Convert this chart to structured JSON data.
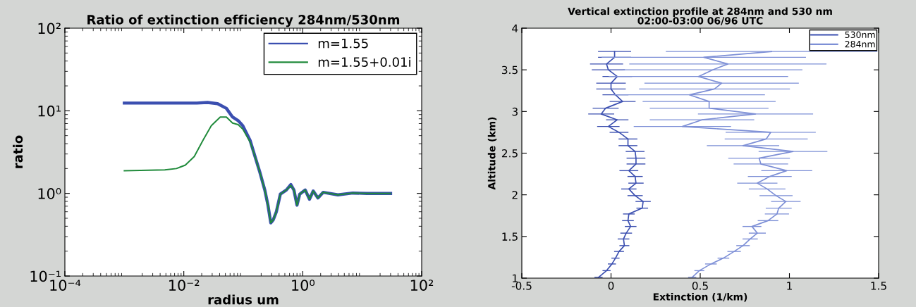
{
  "chart_data": [
    {
      "type": "line",
      "title": "Ratio of extinction efficiency 284nm/530nm",
      "xlabel": "radius um",
      "ylabel": "ratio",
      "log": "xy",
      "xlim": [
        0.0001,
        100
      ],
      "ylim": [
        0.1,
        100
      ],
      "xticks": [
        {
          "value": 0.0001,
          "label": "10⁻⁴"
        },
        {
          "value": 0.01,
          "label": "10⁻²"
        },
        {
          "value": 1,
          "label": "10⁰"
        },
        {
          "value": 100,
          "label": "10²"
        }
      ],
      "yticks": [
        {
          "value": 0.1,
          "label": "10⁻¹"
        },
        {
          "value": 1,
          "label": "10⁰"
        },
        {
          "value": 10,
          "label": "10¹"
        },
        {
          "value": 100,
          "label": "10²"
        }
      ],
      "grid": false,
      "legend": "top right",
      "marker": "none",
      "line_style": "solid",
      "series": [
        {
          "name": "m=1.55",
          "color": "#3b4fb0",
          "x": [
            0.001,
            0.0166,
            0.025,
            0.037,
            0.052,
            0.066,
            0.082,
            0.098,
            0.13,
            0.16,
            0.19,
            0.23,
            0.26,
            0.29,
            0.32,
            0.36,
            0.42,
            0.53,
            0.63,
            0.71,
            0.8,
            0.89,
            1.1,
            1.3,
            1.5,
            1.8,
            2.2,
            3.9,
            6.9,
            12,
            30
          ],
          "values": [
            12.4,
            12.4,
            12.6,
            12.2,
            10.7,
            8.4,
            7.6,
            6.6,
            4.4,
            2.7,
            1.8,
            1.1,
            0.72,
            0.44,
            0.48,
            0.6,
            0.98,
            1.1,
            1.28,
            1.1,
            0.72,
            0.98,
            1.1,
            0.85,
            1.07,
            0.88,
            1.03,
            0.96,
            1.01,
            1.0,
            1.0
          ]
        },
        {
          "name": "m=1.55+0.01i",
          "color": "#1f8a3a",
          "x": [
            0.001,
            0.0048,
            0.0075,
            0.0106,
            0.015,
            0.021,
            0.029,
            0.041,
            0.052,
            0.066,
            0.082,
            0.098,
            0.13,
            0.16,
            0.19,
            0.23,
            0.26,
            0.29,
            0.32,
            0.36,
            0.42,
            0.53,
            0.63,
            0.71,
            0.8,
            0.89,
            1.1,
            1.3,
            1.5,
            1.8,
            2.2,
            3.9,
            6.9,
            12,
            30
          ],
          "values": [
            1.88,
            1.93,
            2.0,
            2.2,
            2.8,
            4.4,
            6.6,
            8.4,
            8.4,
            7.1,
            6.8,
            6.0,
            4.2,
            2.7,
            1.8,
            1.1,
            0.72,
            0.44,
            0.48,
            0.6,
            0.98,
            1.1,
            1.25,
            1.1,
            0.72,
            0.98,
            1.1,
            0.85,
            1.07,
            0.88,
            1.03,
            0.96,
            1.01,
            1.0,
            1.0
          ]
        }
      ]
    },
    {
      "type": "line",
      "title": "Vertical extinction profile at 284nm and 530 nm",
      "subtitle": "02:00-03:00 06/96 UTC",
      "xlabel": "Extinction (1/km)",
      "ylabel": "Altitude (km)",
      "xlim": [
        -0.5,
        1.5
      ],
      "ylim": [
        1,
        4
      ],
      "xticks": [
        -0.5,
        0,
        0.5,
        1,
        1.5
      ],
      "yticks": [
        1,
        1.5,
        2,
        2.5,
        3,
        3.5,
        4
      ],
      "grid": false,
      "legend": "top right",
      "marker": "none",
      "line_style": "solid",
      "series": [
        {
          "name": "530nm",
          "color": "#3b4fb0",
          "x": [
            -0.07,
            -0.025,
            0.005,
            0.025,
            0.045,
            0.075,
            0.07,
            0.085,
            0.11,
            0.095,
            0.1,
            0.175,
            0.18,
            0.135,
            0.1,
            0.14,
            0.135,
            0.1,
            0.14,
            0.14,
            0.135,
            0.095,
            0.095,
            0.045,
            -0.015,
            0.035,
            -0.055,
            -0.03,
            0.065,
            0.025,
            0.0,
            0.0,
            0.035,
            -0.015,
            -0.025,
            0.02,
            0.02
          ],
          "values": [
            1.01,
            1.09,
            1.17,
            1.24,
            1.32,
            1.39,
            1.47,
            1.54,
            1.62,
            1.69,
            1.77,
            1.84,
            1.92,
            1.99,
            2.07,
            2.14,
            2.22,
            2.29,
            2.37,
            2.44,
            2.52,
            2.59,
            2.67,
            2.75,
            2.82,
            2.9,
            2.97,
            3.04,
            3.12,
            3.2,
            3.27,
            3.34,
            3.42,
            3.5,
            3.57,
            3.65,
            3.72
          ],
          "xerrors": [
            0.02,
            0.02,
            0.02,
            0.02,
            0.025,
            0.025,
            0.03,
            0.03,
            0.03,
            0.03,
            0.03,
            0.03,
            0.04,
            0.04,
            0.04,
            0.04,
            0.04,
            0.05,
            0.05,
            0.05,
            0.05,
            0.05,
            0.05,
            0.05,
            0.06,
            0.06,
            0.07,
            0.07,
            0.07,
            0.07,
            0.08,
            0.08,
            0.08,
            0.09,
            0.09,
            0.09,
            0.09
          ]
        },
        {
          "name": "284nm",
          "color": "#7d8fd6",
          "x": [
            0.455,
            0.495,
            0.56,
            0.63,
            0.69,
            0.74,
            0.78,
            0.82,
            0.79,
            0.88,
            0.93,
            0.94,
            0.98,
            0.925,
            0.875,
            0.82,
            0.89,
            0.985,
            0.84,
            0.83,
            1.02,
            0.74,
            0.87,
            0.895,
            0.4,
            0.51,
            0.81,
            0.55,
            0.55,
            0.44,
            0.58,
            0.62,
            0.49,
            0.57,
            0.655,
            0.52,
            0.9
          ],
          "values": [
            1.01,
            1.09,
            1.17,
            1.24,
            1.32,
            1.39,
            1.47,
            1.54,
            1.62,
            1.69,
            1.77,
            1.84,
            1.92,
            1.99,
            2.07,
            2.14,
            2.22,
            2.29,
            2.37,
            2.44,
            2.52,
            2.59,
            2.67,
            2.75,
            2.82,
            2.9,
            2.97,
            3.04,
            3.12,
            3.2,
            3.27,
            3.34,
            3.42,
            3.5,
            3.57,
            3.65,
            3.72
          ],
          "xerrors": [
            0.02,
            0.025,
            0.03,
            0.03,
            0.035,
            0.035,
            0.04,
            0.045,
            0.05,
            0.055,
            0.065,
            0.07,
            0.08,
            0.09,
            0.1,
            0.11,
            0.12,
            0.14,
            0.15,
            0.17,
            0.19,
            0.2,
            0.23,
            0.25,
            0.27,
            0.29,
            0.32,
            0.33,
            0.37,
            0.42,
            0.42,
            0.43,
            0.5,
            0.5,
            0.55,
            0.57,
            0.59
          ]
        }
      ]
    }
  ]
}
